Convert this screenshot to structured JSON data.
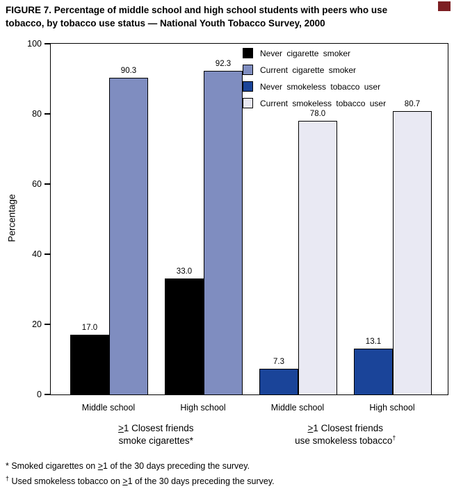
{
  "figure": {
    "title": "FIGURE 7. Percentage of middle school and high school students with peers who use tobacco, by tobacco use status — National Youth Tobacco Survey, 2000",
    "corner_color": "#7d1f23"
  },
  "chart_data": {
    "type": "bar",
    "title": "FIGURE 7. Percentage of middle school and high school students with peers who use tobacco, by tobacco use status — National Youth Tobacco Survey, 2000",
    "xlabel": "",
    "ylabel": "Percentage",
    "ylim": [
      0,
      100
    ],
    "yticks": [
      0,
      20,
      40,
      60,
      80,
      100
    ],
    "grid": false,
    "legend_position": "top-right-inside",
    "series": [
      {
        "name": "Never cigarette smoker",
        "color": "#000000"
      },
      {
        "name": "Current cigarette smoker",
        "color": "#7f8dc0"
      },
      {
        "name": "Never smokeless tobacco user",
        "color": "#1a4499"
      },
      {
        "name": "Current smokeless tobacco user",
        "color": "#e9e9f3"
      }
    ],
    "groups": [
      {
        "category": "Middle school",
        "bars": [
          {
            "series": 0,
            "value": 17.0,
            "label": "17.0"
          },
          {
            "series": 1,
            "value": 90.3,
            "label": "90.3"
          }
        ]
      },
      {
        "category": "High school",
        "bars": [
          {
            "series": 0,
            "value": 33.0,
            "label": "33.0"
          },
          {
            "series": 1,
            "value": 92.3,
            "label": "92.3"
          }
        ]
      },
      {
        "category": "Middle school",
        "bars": [
          {
            "series": 2,
            "value": 7.3,
            "label": "7.3"
          },
          {
            "series": 3,
            "value": 78.0,
            "label": "78.0"
          }
        ]
      },
      {
        "category": "High school",
        "bars": [
          {
            "series": 2,
            "value": 13.1,
            "label": "13.1"
          },
          {
            "series": 3,
            "value": 80.7,
            "label": "80.7"
          }
        ]
      }
    ],
    "group_axis_labels": [
      {
        "geq": ">",
        "line1": "1 Closest friends",
        "line2": "smoke cigarettes*",
        "line2_sup": ""
      },
      {
        "geq": ">",
        "line1": "1 Closest friends",
        "line2": "use smokeless tobacco",
        "line2_sup": "†"
      }
    ]
  },
  "footnotes": [
    {
      "marker": "*",
      "pre": " Smoked cigarettes on ",
      "geq": ">",
      "post": "1 of the 30 days preceding the survey."
    },
    {
      "marker": "†",
      "pre": " Used smokeless tobacco on ",
      "geq": ">",
      "post": "1 of the 30 days preceding the survey."
    }
  ]
}
